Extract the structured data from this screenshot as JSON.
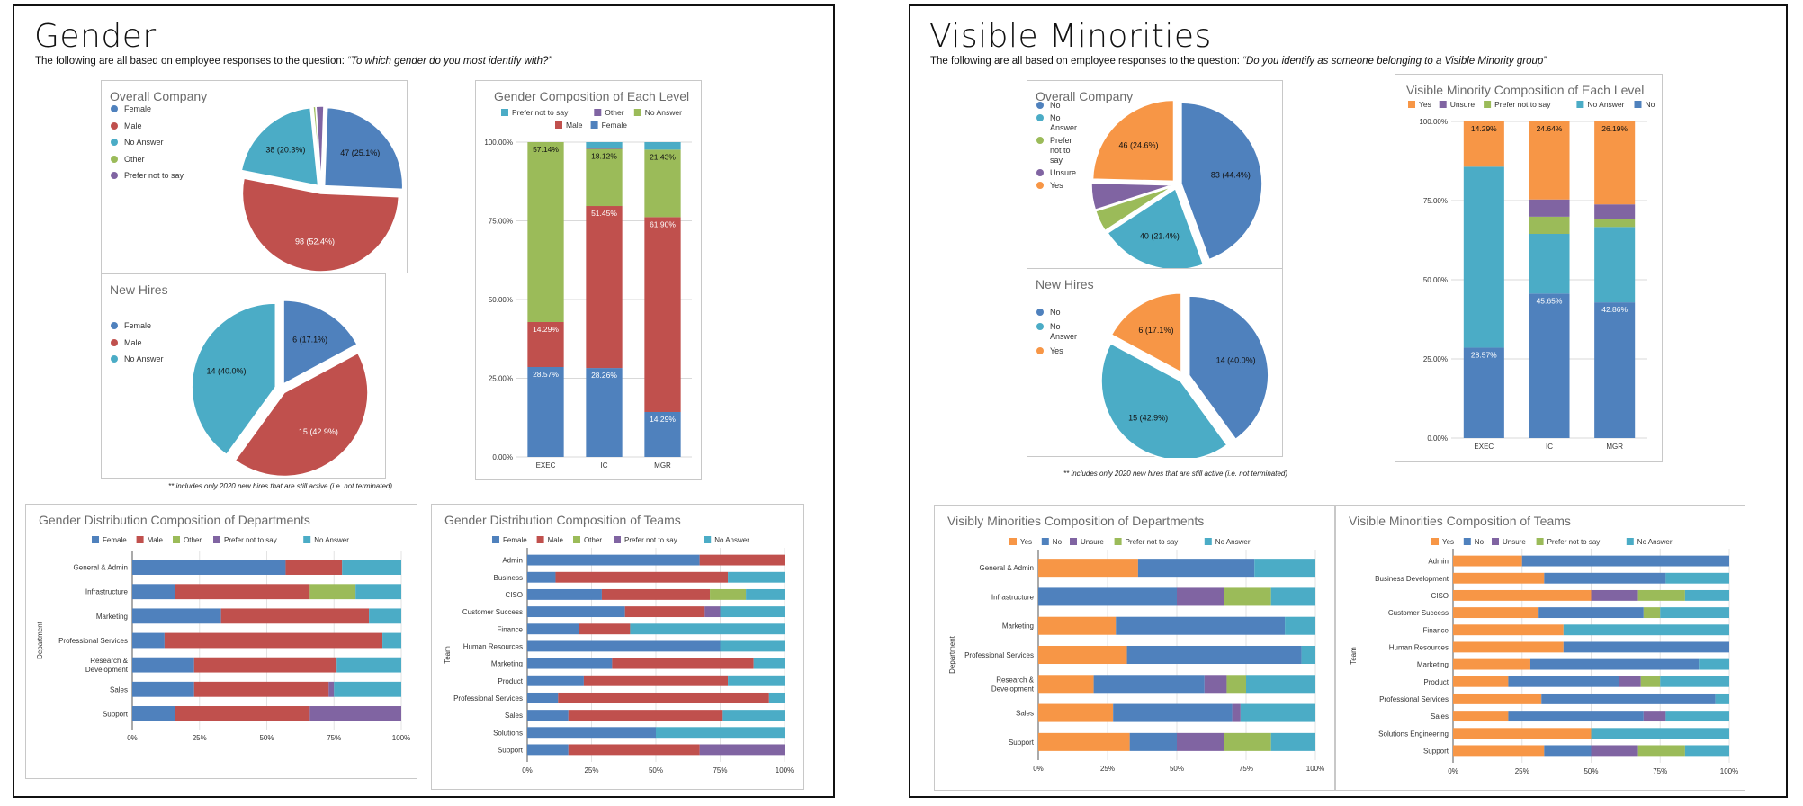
{
  "colors": {
    "blue": "#4f81bd",
    "red": "#c0504d",
    "green": "#9bbb59",
    "purple": "#8064a2",
    "teal": "#4bacc6",
    "orange": "#f79646"
  },
  "gender": {
    "title": "Gender",
    "subtitle_prefix": "The following are all based on employee responses to the question: ",
    "subtitle_question": "“To which gender do you most identify with?”",
    "footnote": "** includes only 2020 new hires that are still active (i.e. not terminated)"
  },
  "minorities": {
    "title": "Visible Minorities",
    "subtitle_prefix": "The following are all based on employee responses to the question: ",
    "subtitle_question": "“Do you identify as someone belonging to a Visible Minority group”",
    "footnote": "** includes only 2020 new hires that are still active (i.e. not terminated)"
  },
  "chart_data": [
    {
      "id": "g-overall",
      "type": "pie",
      "title": "Overall Company",
      "slices": [
        {
          "name": "Female",
          "value": 47,
          "label": "47 (25.1%)",
          "color": "#4f81bd"
        },
        {
          "name": "Male",
          "value": 98,
          "label": "98 (52.4%)",
          "color": "#c0504d"
        },
        {
          "name": "No Answer",
          "value": 38,
          "label": "38 (20.3%)",
          "color": "#4bacc6"
        },
        {
          "name": "Other",
          "value": 1,
          "label": "",
          "color": "#9bbb59"
        },
        {
          "name": "Prefer not to say",
          "value": 3,
          "label": "",
          "color": "#8064a2"
        }
      ]
    },
    {
      "id": "g-newhires",
      "type": "pie",
      "title": "New Hires",
      "slices": [
        {
          "name": "Female",
          "value": 6,
          "label": "6 (17.1%)",
          "color": "#4f81bd"
        },
        {
          "name": "Male",
          "value": 15,
          "label": "15 (42.9%)",
          "color": "#c0504d"
        },
        {
          "name": "No Answer",
          "value": 14,
          "label": "14 (40.0%)",
          "color": "#4bacc6"
        }
      ]
    },
    {
      "id": "g-level",
      "type": "bar",
      "stacked": true,
      "orientation": "vertical",
      "title": "Gender Composition of Each Level",
      "categories": [
        "EXEC",
        "IC",
        "MGR"
      ],
      "ylim": [
        0,
        100
      ],
      "yticks": [
        "0.00%",
        "25.00%",
        "50.00%",
        "75.00%",
        "100.00%"
      ],
      "legend": [
        "Prefer not to say",
        "Other",
        "No Answer",
        "Male",
        "Female"
      ],
      "series": [
        {
          "name": "Female",
          "color": "#4f81bd",
          "values": [
            28.57,
            28.26,
            14.29
          ],
          "labels": [
            "28.57%",
            "28.26%",
            "14.29%"
          ]
        },
        {
          "name": "Male",
          "color": "#c0504d",
          "values": [
            14.29,
            51.45,
            61.9
          ],
          "labels": [
            "14.29%",
            "51.45%",
            "61.90%"
          ]
        },
        {
          "name": "No Answer",
          "color": "#9bbb59",
          "values": [
            57.14,
            18.12,
            21.43
          ],
          "labels": [
            "57.14%",
            "18.12%",
            "21.43%"
          ]
        },
        {
          "name": "Other",
          "color": "#8064a2",
          "values": [
            0,
            0.36,
            0
          ],
          "labels": [
            "",
            "",
            ""
          ]
        },
        {
          "name": "Prefer not to say",
          "color": "#4bacc6",
          "values": [
            0,
            1.81,
            2.38
          ],
          "labels": [
            "",
            "",
            ""
          ]
        }
      ]
    },
    {
      "id": "g-dept",
      "type": "bar",
      "stacked": true,
      "orientation": "horizontal",
      "title": "Gender Distribution Composition of Departments",
      "ylabel": "Department",
      "categories": [
        "General & Admin",
        "Infrastructure",
        "Marketing",
        "Professional Services",
        "Research & Development",
        "Sales",
        "Support"
      ],
      "xticks": [
        "0%",
        "25%",
        "50%",
        "75%",
        "100%"
      ],
      "legend": [
        "Female",
        "Male",
        "Other",
        "Prefer not to say",
        "No Answer"
      ],
      "series": [
        {
          "name": "Female",
          "color": "#4f81bd",
          "values": [
            57,
            16,
            33,
            12,
            23,
            23,
            16
          ]
        },
        {
          "name": "Male",
          "color": "#c0504d",
          "values": [
            21,
            50,
            55,
            81,
            53,
            50,
            50
          ]
        },
        {
          "name": "Other",
          "color": "#9bbb59",
          "values": [
            0,
            17,
            0,
            0,
            0,
            0,
            0
          ]
        },
        {
          "name": "Prefer not to say",
          "color": "#8064a2",
          "values": [
            0,
            0,
            0,
            0,
            0,
            2,
            34
          ]
        },
        {
          "name": "No Answer",
          "color": "#4bacc6",
          "values": [
            22,
            17,
            12,
            7,
            24,
            25,
            0
          ]
        }
      ]
    },
    {
      "id": "g-teams",
      "type": "bar",
      "stacked": true,
      "orientation": "horizontal",
      "title": "Gender Distribution Composition of Teams",
      "ylabel": "Team",
      "categories": [
        "Admin",
        "Business",
        "CISO",
        "Customer Success",
        "Finance",
        "Human Resources",
        "Marketing",
        "Product",
        "Professional Services",
        "Sales",
        "Solutions",
        "Support"
      ],
      "xticks": [
        "0%",
        "25%",
        "50%",
        "75%",
        "100%"
      ],
      "legend": [
        "Female",
        "Male",
        "Other",
        "Prefer not to say",
        "No Answer"
      ],
      "series": [
        {
          "name": "Female",
          "color": "#4f81bd",
          "values": [
            67,
            11,
            29,
            38,
            20,
            75,
            33,
            22,
            12,
            16,
            50,
            16
          ]
        },
        {
          "name": "Male",
          "color": "#c0504d",
          "values": [
            33,
            67,
            42,
            31,
            20,
            0,
            55,
            56,
            82,
            60,
            0,
            51
          ]
        },
        {
          "name": "Other",
          "color": "#9bbb59",
          "values": [
            0,
            0,
            14,
            0,
            0,
            0,
            0,
            0,
            0,
            0,
            0,
            0
          ]
        },
        {
          "name": "Prefer not to say",
          "color": "#8064a2",
          "values": [
            0,
            0,
            0,
            6,
            0,
            0,
            0,
            0,
            0,
            0,
            0,
            33
          ]
        },
        {
          "name": "No Answer",
          "color": "#4bacc6",
          "values": [
            0,
            22,
            15,
            25,
            60,
            25,
            12,
            22,
            6,
            24,
            50,
            0
          ]
        }
      ]
    },
    {
      "id": "m-overall",
      "type": "pie",
      "title": "Overall Company",
      "slices": [
        {
          "name": "No",
          "value": 83,
          "label": "83 (44.4%)",
          "color": "#4f81bd"
        },
        {
          "name": "No Answer",
          "value": 40,
          "label": "40 (21.4%)",
          "color": "#4bacc6"
        },
        {
          "name": "Prefer not to say",
          "value": 8,
          "label": "",
          "color": "#9bbb59"
        },
        {
          "name": "Unsure",
          "value": 10,
          "label": "",
          "color": "#8064a2"
        },
        {
          "name": "Yes",
          "value": 46,
          "label": "46 (24.6%)",
          "color": "#f79646"
        }
      ]
    },
    {
      "id": "m-newhires",
      "type": "pie",
      "title": "New Hires",
      "slices": [
        {
          "name": "No",
          "value": 14,
          "label": "14 (40.0%)",
          "color": "#4f81bd"
        },
        {
          "name": "No Answer",
          "value": 15,
          "label": "15 (42.9%)",
          "color": "#4bacc6"
        },
        {
          "name": "Yes",
          "value": 6,
          "label": "6 (17.1%)",
          "color": "#f79646"
        }
      ]
    },
    {
      "id": "m-level",
      "type": "bar",
      "stacked": true,
      "orientation": "vertical",
      "title": "Visible Minority Composition of Each Level",
      "categories": [
        "EXEC",
        "IC",
        "MGR"
      ],
      "ylim": [
        0,
        100
      ],
      "yticks": [
        "0.00%",
        "25.00%",
        "50.00%",
        "75.00%",
        "100.00%"
      ],
      "legend": [
        "Yes",
        "Unsure",
        "Prefer not to say",
        "No Answer",
        "No"
      ],
      "series": [
        {
          "name": "No",
          "color": "#4f81bd",
          "values": [
            28.57,
            45.65,
            42.86
          ],
          "labels": [
            "28.57%",
            "45.65%",
            "42.86%"
          ]
        },
        {
          "name": "No Answer",
          "color": "#4bacc6",
          "values": [
            57.14,
            18.84,
            23.81
          ],
          "labels": [
            "",
            "",
            ""
          ]
        },
        {
          "name": "Prefer not to say",
          "color": "#9bbb59",
          "values": [
            0,
            5.43,
            2.38
          ],
          "labels": [
            "",
            "",
            ""
          ]
        },
        {
          "name": "Unsure",
          "color": "#8064a2",
          "values": [
            0,
            5.44,
            4.76
          ],
          "labels": [
            "",
            "",
            ""
          ]
        },
        {
          "name": "Yes",
          "color": "#f79646",
          "values": [
            14.29,
            24.64,
            26.19
          ],
          "labels": [
            "14.29%",
            "24.64%",
            "26.19%"
          ]
        }
      ]
    },
    {
      "id": "m-dept",
      "type": "bar",
      "stacked": true,
      "orientation": "horizontal",
      "title": "Visibly Minorities Composition of Departments",
      "ylabel": "Department",
      "categories": [
        "General & Admin",
        "Infrastructure",
        "Marketing",
        "Professional Services",
        "Research & Development",
        "Sales",
        "Support"
      ],
      "xticks": [
        "0%",
        "25%",
        "50%",
        "75%",
        "100%"
      ],
      "legend": [
        "Yes",
        "No",
        "Unsure",
        "Prefer not to say",
        "No Answer"
      ],
      "series": [
        {
          "name": "Yes",
          "color": "#f79646",
          "values": [
            36,
            0,
            28,
            32,
            20,
            27,
            33
          ]
        },
        {
          "name": "No",
          "color": "#4f81bd",
          "values": [
            42,
            50,
            61,
            63,
            40,
            43,
            17
          ]
        },
        {
          "name": "Unsure",
          "color": "#8064a2",
          "values": [
            0,
            17,
            0,
            0,
            8,
            3,
            17
          ]
        },
        {
          "name": "Prefer not to say",
          "color": "#9bbb59",
          "values": [
            0,
            17,
            0,
            0,
            7,
            0,
            17
          ]
        },
        {
          "name": "No Answer",
          "color": "#4bacc6",
          "values": [
            22,
            16,
            11,
            5,
            25,
            27,
            16
          ]
        }
      ]
    },
    {
      "id": "m-teams",
      "type": "bar",
      "stacked": true,
      "orientation": "horizontal",
      "title": "Visible Minorities Composition of Teams",
      "ylabel": "Team",
      "categories": [
        "Admin",
        "Business Development",
        "CISO",
        "Customer Success",
        "Finance",
        "Human Resources",
        "Marketing",
        "Product",
        "Professional Services",
        "Sales",
        "Solutions Engineering",
        "Support"
      ],
      "xticks": [
        "0%",
        "25%",
        "50%",
        "75%",
        "100%"
      ],
      "legend": [
        "Yes",
        "No",
        "Unsure",
        "Prefer not to say",
        "No Answer"
      ],
      "series": [
        {
          "name": "Yes",
          "color": "#f79646",
          "values": [
            25,
            33,
            50,
            31,
            40,
            40,
            28,
            20,
            32,
            20,
            50,
            33
          ]
        },
        {
          "name": "No",
          "color": "#4f81bd",
          "values": [
            75,
            44,
            0,
            38,
            0,
            60,
            61,
            40,
            63,
            49,
            0,
            17
          ]
        },
        {
          "name": "Unsure",
          "color": "#8064a2",
          "values": [
            0,
            0,
            17,
            0,
            0,
            0,
            0,
            8,
            0,
            8,
            0,
            17
          ]
        },
        {
          "name": "Prefer not to say",
          "color": "#9bbb59",
          "values": [
            0,
            0,
            17,
            6,
            0,
            0,
            0,
            7,
            0,
            0,
            0,
            17
          ]
        },
        {
          "name": "No Answer",
          "color": "#4bacc6",
          "values": [
            0,
            23,
            16,
            25,
            60,
            0,
            11,
            25,
            5,
            23,
            50,
            16
          ]
        }
      ]
    }
  ]
}
